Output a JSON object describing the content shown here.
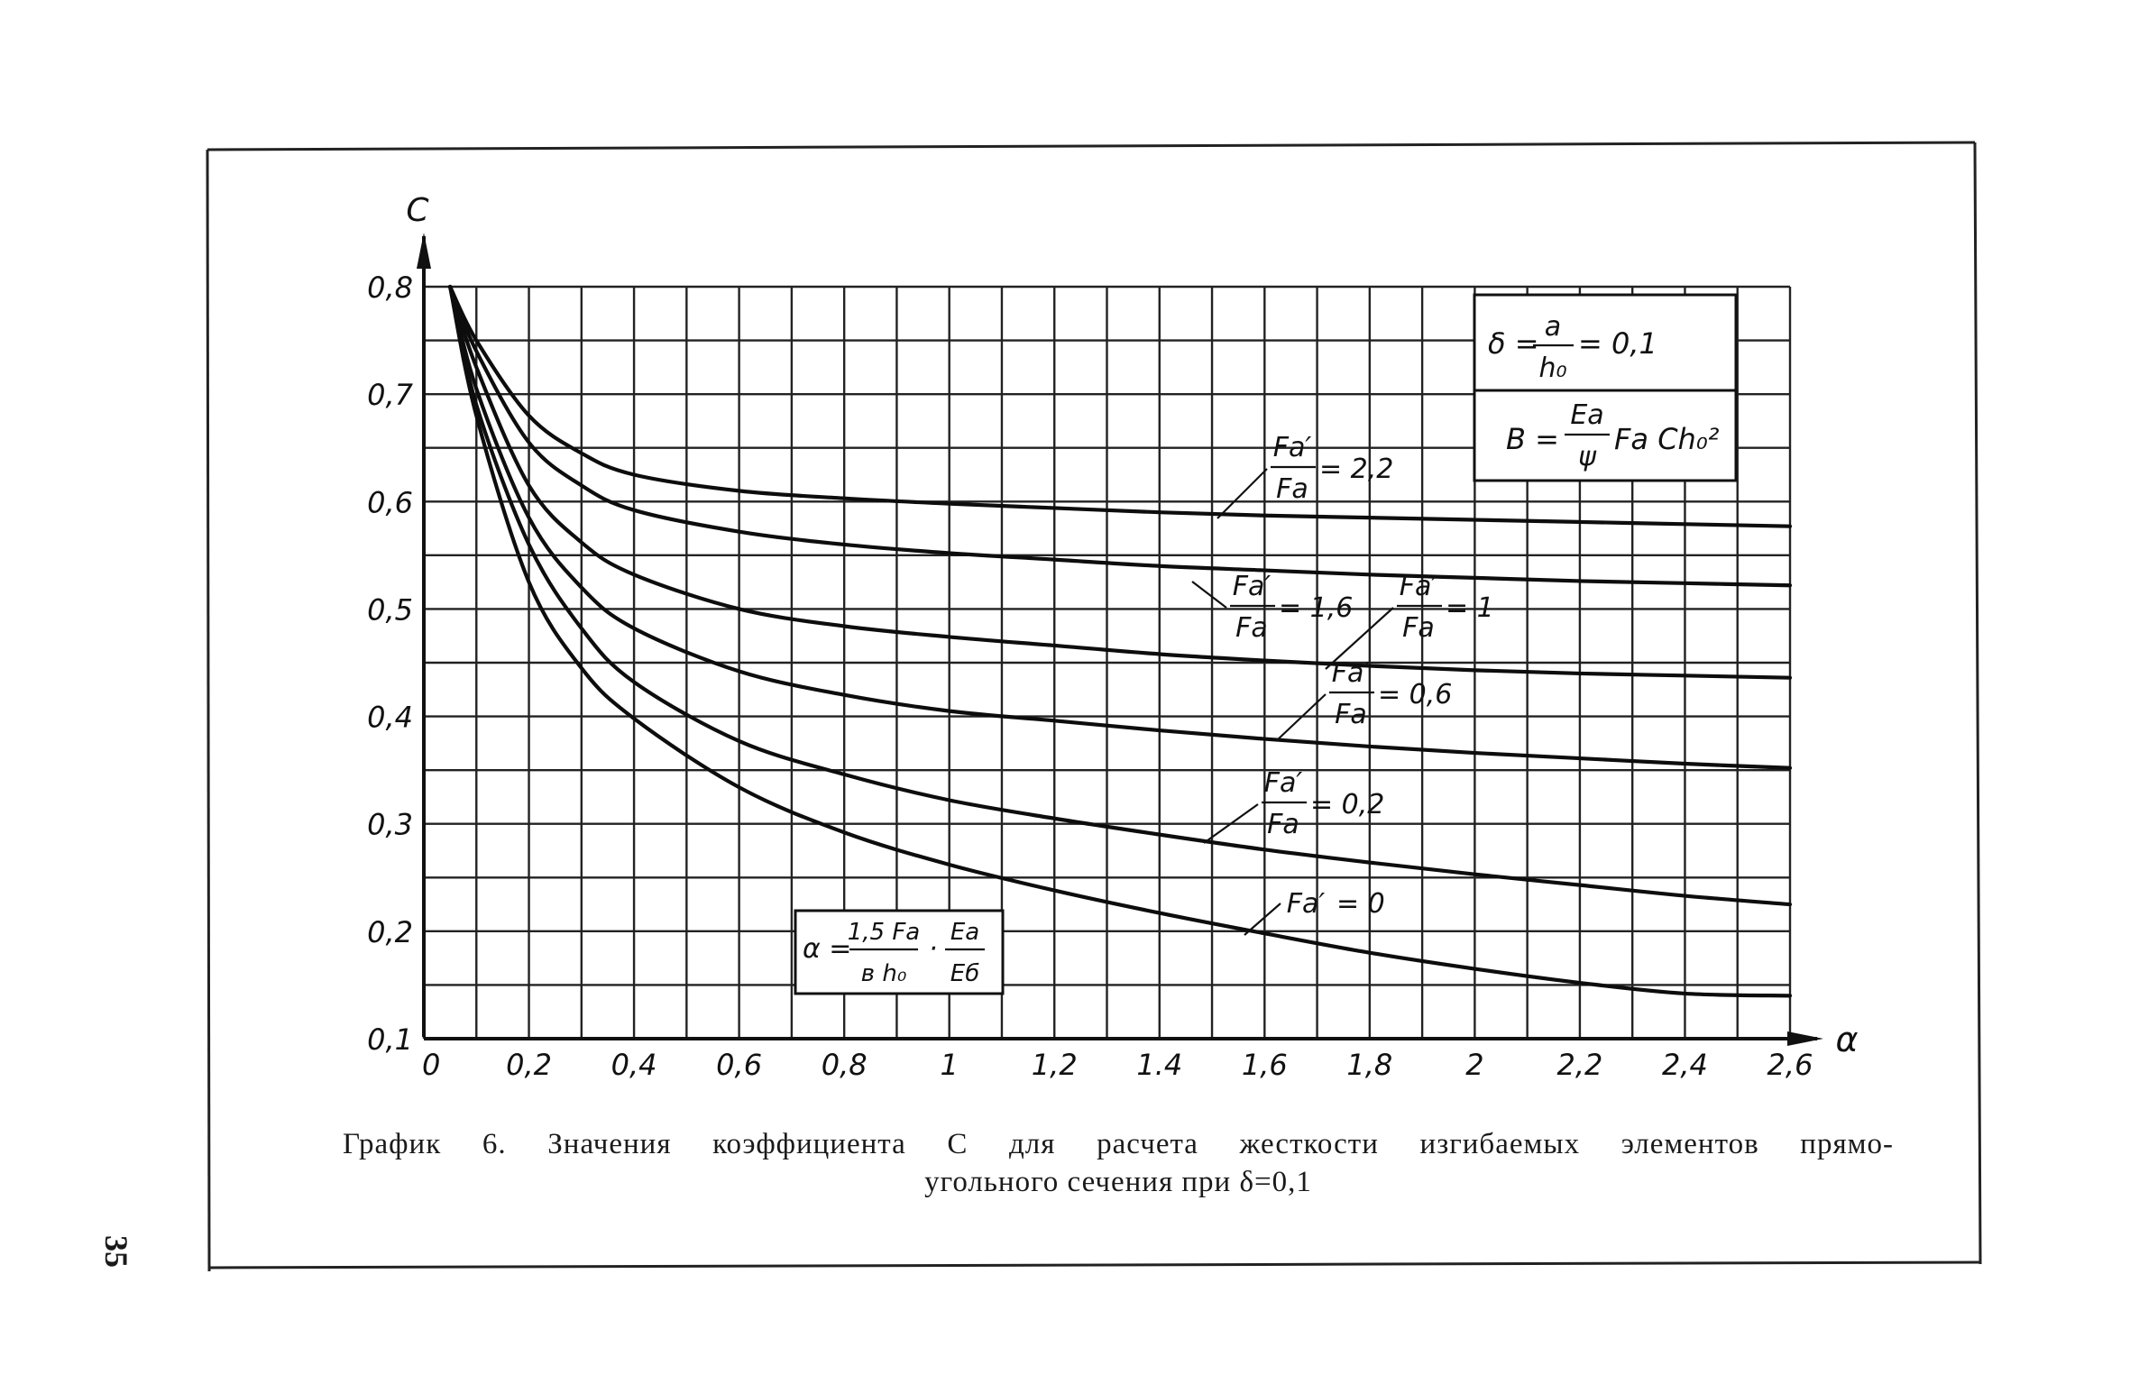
{
  "page": {
    "number": "35"
  },
  "caption": {
    "line1": "График 6. Значения коэффициента С для расчета жесткости изгибаемых элементов прямо-",
    "line2": "угольного сечения при δ=0,1"
  },
  "chart_data": {
    "type": "line",
    "title": "",
    "xlabel": "α",
    "ylabel": "C",
    "xlim": [
      0,
      2.6
    ],
    "ylim": [
      0.1,
      0.8
    ],
    "grid": true,
    "x_tick_labels": [
      "0",
      "0,2",
      "0,4",
      "0,6",
      "0,8",
      "1",
      "1,2",
      "1.4",
      "1,6",
      "1,8",
      "2",
      "2,2",
      "2,4",
      "2,6"
    ],
    "y_tick_labels": [
      "0,1",
      "0,2",
      "0,3",
      "0,4",
      "0,5",
      "0,6",
      "0,7",
      "0,8"
    ],
    "x": [
      0.05,
      0.1,
      0.2,
      0.3,
      0.4,
      0.6,
      0.8,
      1.0,
      1.2,
      1.4,
      1.6,
      1.8,
      2.0,
      2.2,
      2.4,
      2.6
    ],
    "series": [
      {
        "label_num": "Fa′",
        "label_den": "Fa",
        "label_val": "= 2,2",
        "values": [
          0.8,
          0.75,
          0.68,
          0.645,
          0.625,
          0.61,
          0.603,
          0.598,
          0.594,
          0.59,
          0.587,
          0.585,
          0.583,
          0.581,
          0.579,
          0.577
        ]
      },
      {
        "label_num": "Fa′",
        "label_den": "Fa",
        "label_val": "= 1,6",
        "values": [
          0.8,
          0.74,
          0.655,
          0.615,
          0.592,
          0.572,
          0.56,
          0.552,
          0.546,
          0.54,
          0.536,
          0.532,
          0.529,
          0.526,
          0.524,
          0.522
        ]
      },
      {
        "label_num": "Fa′",
        "label_den": "Fa",
        "label_val": "= 1",
        "values": [
          0.8,
          0.725,
          0.615,
          0.562,
          0.532,
          0.5,
          0.484,
          0.474,
          0.466,
          0.458,
          0.452,
          0.447,
          0.443,
          0.44,
          0.438,
          0.436
        ]
      },
      {
        "label_num": "Fa′",
        "label_den": "Fa",
        "label_val": "= 0,6",
        "values": [
          0.8,
          0.705,
          0.585,
          0.52,
          0.482,
          0.442,
          0.42,
          0.405,
          0.396,
          0.387,
          0.379,
          0.372,
          0.366,
          0.361,
          0.356,
          0.352
        ]
      },
      {
        "label_num": "Fa′",
        "label_den": "Fa",
        "label_val": "= 0,2",
        "values": [
          0.8,
          0.69,
          0.56,
          0.482,
          0.432,
          0.377,
          0.346,
          0.322,
          0.305,
          0.29,
          0.276,
          0.264,
          0.253,
          0.243,
          0.233,
          0.225
        ]
      },
      {
        "label_num": "Fa′",
        "label_den": "",
        "label_val": "= 0",
        "values": [
          0.8,
          0.68,
          0.525,
          0.445,
          0.398,
          0.334,
          0.292,
          0.262,
          0.238,
          0.217,
          0.198,
          0.18,
          0.165,
          0.152,
          0.142,
          0.14
        ]
      }
    ],
    "annotations": {
      "delta_box": {
        "lhs": "δ =",
        "num": "a",
        "den": "h₀",
        "rhs": "= 0,1"
      },
      "b_box": {
        "lhs": "B =",
        "num": "Eа",
        "den": "ψ",
        "rhs": "Fа Ch₀²"
      },
      "alpha_box": {
        "lhs": "α =",
        "num1": "1,5 Fа",
        "den1": "в h₀",
        "dot": "·",
        "num2": "Eа",
        "den2": "Eб"
      }
    }
  }
}
